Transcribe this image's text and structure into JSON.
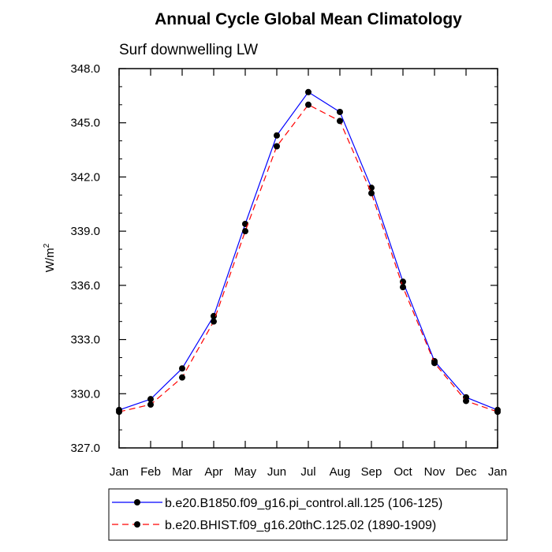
{
  "chart_data": {
    "type": "line",
    "title": "Annual Cycle Global Mean Climatology",
    "subtitle": "Surf downwelling LW",
    "ylabel_base": "W/m",
    "ylabel_sup": "2",
    "ylim": [
      327.0,
      348.0
    ],
    "yticks": [
      "327.0",
      "330.0",
      "333.0",
      "336.0",
      "339.0",
      "342.0",
      "345.0",
      "348.0"
    ],
    "ytick_values": [
      327,
      330,
      333,
      336,
      339,
      342,
      345,
      348
    ],
    "categories": [
      "Jan",
      "Feb",
      "Mar",
      "Apr",
      "May",
      "Jun",
      "Jul",
      "Aug",
      "Sep",
      "Oct",
      "Nov",
      "Dec",
      "Jan"
    ],
    "grid": false,
    "legend_position": "bottom",
    "series": [
      {
        "name": "b.e20.B1850.f09_g16.pi_control.all.125 (106-125)",
        "color": "#0000ff",
        "dash": "solid",
        "values": [
          329.1,
          329.7,
          331.4,
          334.3,
          339.4,
          344.3,
          346.7,
          345.6,
          341.4,
          336.2,
          331.8,
          329.8,
          329.1
        ]
      },
      {
        "name": "b.e20.BHIST.f09_g16.20thC.125.02 (1890-1909)",
        "color": "#ff0000",
        "dash": "dashed",
        "values": [
          329.0,
          329.4,
          330.9,
          334.0,
          339.0,
          343.7,
          346.0,
          345.1,
          341.1,
          335.9,
          331.7,
          329.6,
          329.0
        ]
      }
    ]
  }
}
